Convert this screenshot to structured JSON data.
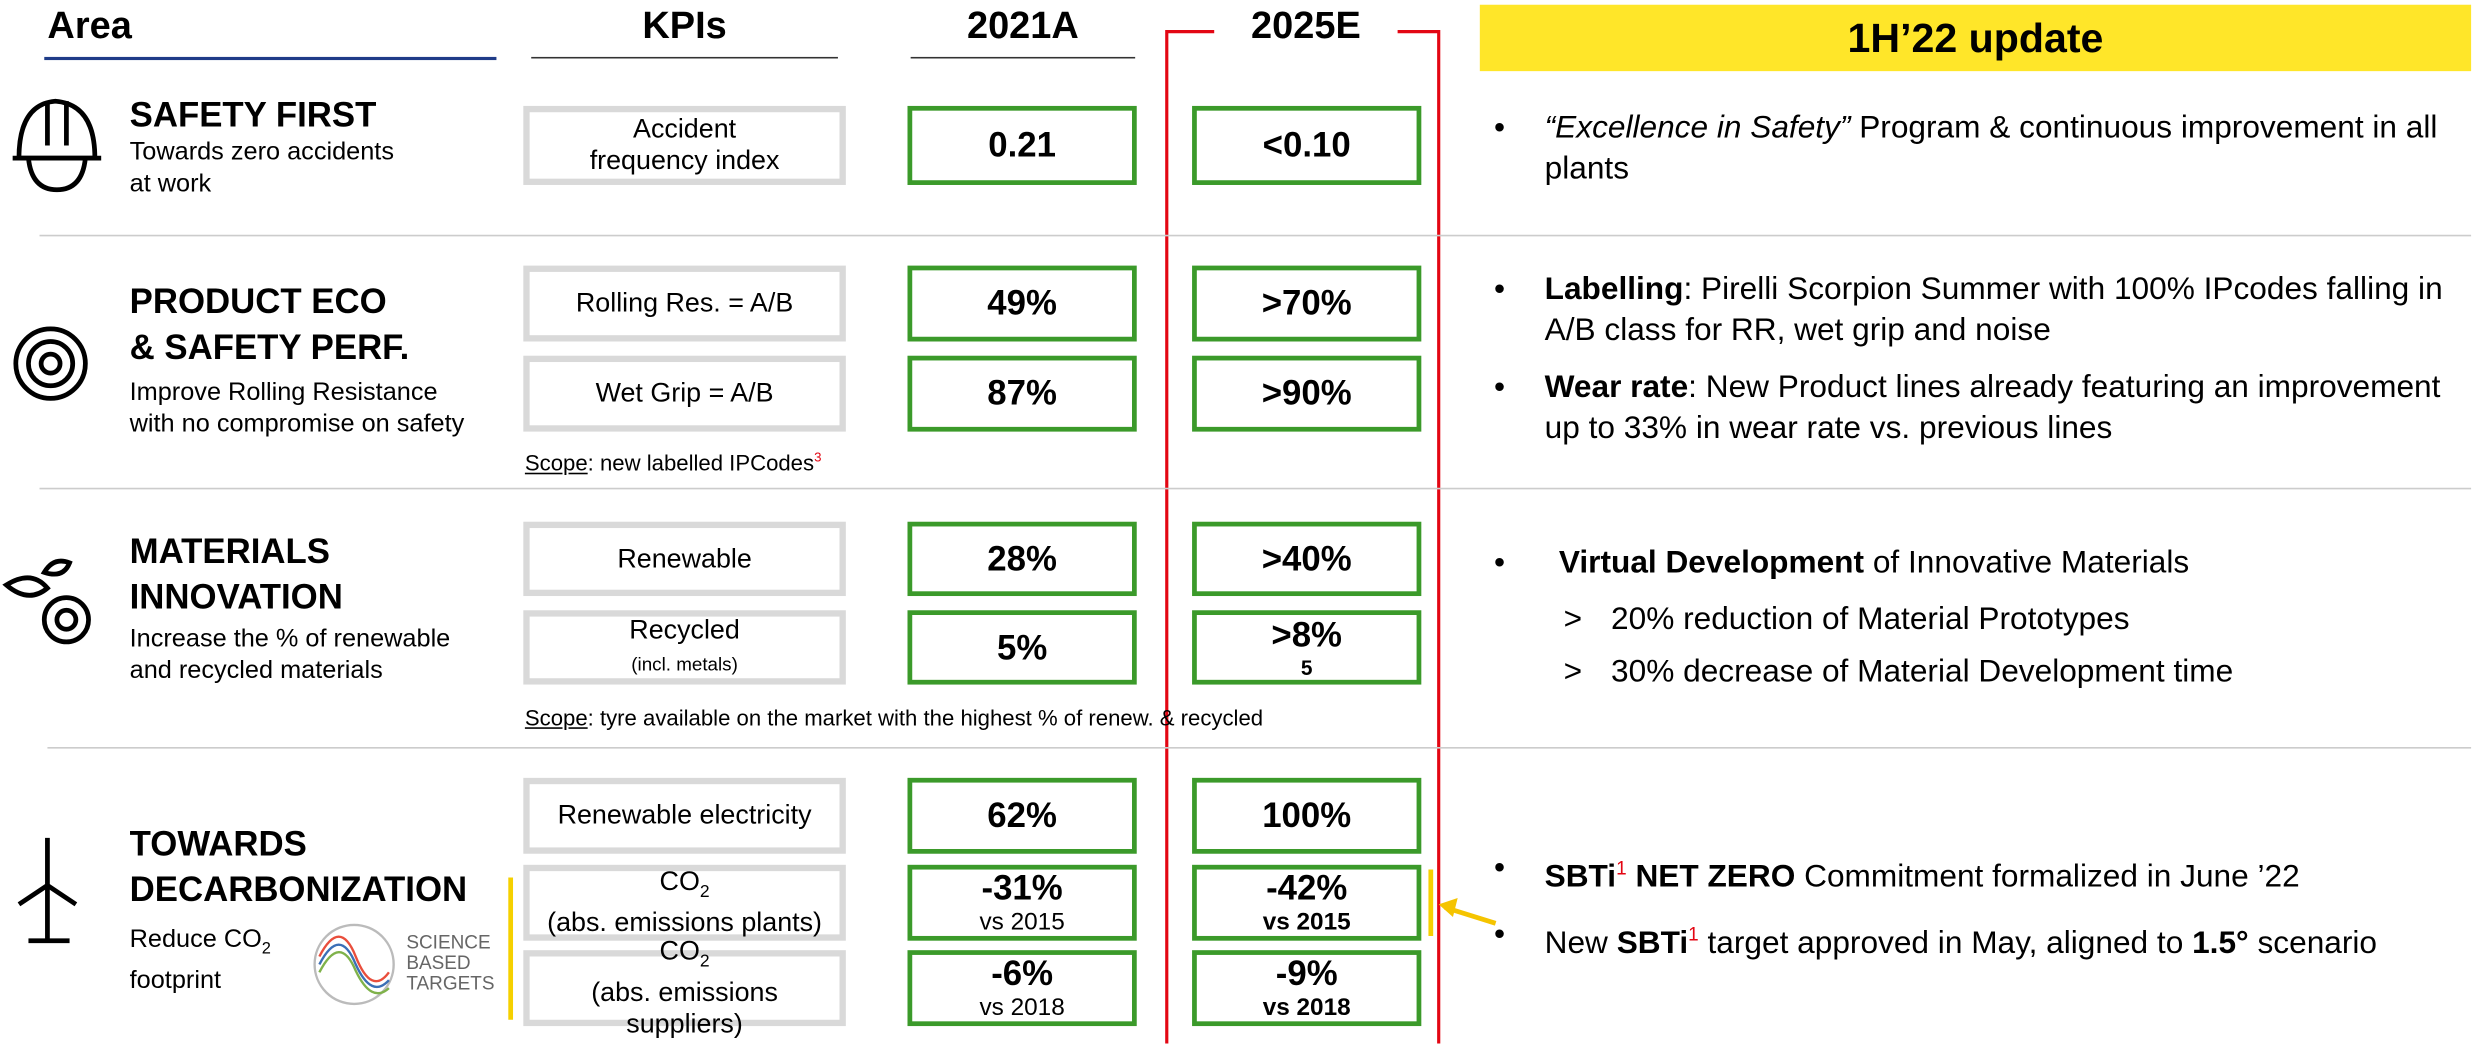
{
  "header": {
    "area": "Area",
    "kpis": "KPIs",
    "year_a": "2021A",
    "year_e": "2025E",
    "update": "1H’22 update"
  },
  "sections": [
    {
      "title": [
        "SAFETY FIRST"
      ],
      "subtitle": [
        [
          {
            "t": "Towards zero accidents"
          }
        ],
        [
          {
            "t": "at work"
          }
        ]
      ],
      "kpis": [
        {
          "label": [
            [
              {
                "t": "Accident"
              }
            ],
            [
              {
                "t": "frequency index"
              }
            ]
          ],
          "actual": [
            {
              "b": "0.21"
            }
          ],
          "target": [
            {
              "b": "<0.10"
            }
          ]
        }
      ],
      "updates": [
        {
          "marker": "•",
          "runs": [
            {
              "i": "“Excellence in Safety”"
            },
            {
              "t": " Program & continuous improvement in all plants"
            }
          ]
        }
      ]
    },
    {
      "title": [
        "PRODUCT ECO",
        "& SAFETY PERF."
      ],
      "subtitle": [
        [
          {
            "t": "Improve Rolling Resistance"
          }
        ],
        [
          {
            "t": "with no compromise on safety"
          }
        ]
      ],
      "kpis": [
        {
          "label": [
            [
              {
                "t": "Rolling Res. = A/B"
              }
            ]
          ],
          "actual": [
            {
              "b": "49%"
            }
          ],
          "target": [
            {
              "b": ">70%"
            }
          ]
        },
        {
          "label": [
            [
              {
                "t": "Wet Grip = A/B"
              }
            ]
          ],
          "actual": [
            {
              "b": "87%"
            }
          ],
          "target": [
            {
              "b": ">90%"
            }
          ]
        }
      ],
      "scope": [
        {
          "u": "Scope"
        },
        {
          "t": ": new labelled IPCodes"
        },
        {
          "sup": "3"
        }
      ],
      "updates": [
        {
          "marker": "•",
          "runs": [
            {
              "b": "Labelling"
            },
            {
              "t": ": Pirelli Scorpion Summer with 100% IPcodes falling in A/B class for RR, wet grip and noise"
            }
          ]
        },
        {
          "marker": "•",
          "runs": [
            {
              "b": "Wear rate"
            },
            {
              "t": ": New Product lines already featuring an improvement up to 33% in wear rate vs. previous lines"
            }
          ]
        }
      ]
    },
    {
      "title": [
        "MATERIALS",
        "INNOVATION"
      ],
      "subtitle": [
        [
          {
            "t": "Increase the % of renewable"
          }
        ],
        [
          {
            "t": "and recycled materials"
          }
        ]
      ],
      "kpis": [
        {
          "label": [
            [
              {
                "t": "Renewable"
              }
            ]
          ],
          "actual": [
            {
              "b": "28%"
            }
          ],
          "target": [
            {
              "b": ">40%"
            }
          ]
        },
        {
          "label": [
            [
              {
                "t": "Recycled"
              }
            ],
            [
              {
                "s": "(incl. metals)"
              }
            ]
          ],
          "actual": [
            {
              "b": "5%"
            }
          ],
          "target": [
            {
              "b": ">8%"
            },
            {
              "bsup": "5"
            }
          ]
        }
      ],
      "scope": [
        {
          "u": "Scope"
        },
        {
          "t": ": tyre available on the market with the highest % of renew. & recycled"
        }
      ],
      "updates": [
        {
          "marker": "•",
          "runs": [
            {
              "b": "Virtual Development"
            },
            {
              "t": " of Innovative Materials"
            }
          ]
        },
        {
          "marker": ">",
          "sub": true,
          "runs": [
            {
              "t": "20% reduction of Material Prototypes"
            }
          ]
        },
        {
          "marker": ">",
          "sub": true,
          "runs": [
            {
              "t": "30% decrease of Material Development time"
            }
          ]
        }
      ]
    },
    {
      "title": [
        "TOWARDS",
        "DECARBONIZATION"
      ],
      "subtitle": [
        [
          {
            "t": "Reduce CO"
          },
          {
            "sub": "2"
          }
        ],
        [
          {
            "t": "footprint"
          }
        ]
      ],
      "logo": [
        "SCIENCE",
        "BASED",
        "TARGETS"
      ],
      "kpis": [
        {
          "label": [
            [
              {
                "t": "Renewable electricity"
              }
            ]
          ],
          "actual": [
            {
              "b": "62%"
            }
          ],
          "target": [
            {
              "b": "100%"
            }
          ]
        },
        {
          "label": [
            [
              {
                "t": "CO"
              },
              {
                "sub": "2"
              }
            ],
            [
              {
                "t": "(abs. emissions plants)"
              }
            ]
          ],
          "actual": [
            {
              "b": "-31%"
            },
            {
              "s": " vs 2015"
            }
          ],
          "target": [
            {
              "b": "-42%"
            },
            {
              "bs": " vs 2015"
            }
          ]
        },
        {
          "label": [
            [
              {
                "t": "CO"
              },
              {
                "sub": "2"
              }
            ],
            [
              {
                "t": "(abs. emissions suppliers)"
              }
            ]
          ],
          "actual": [
            {
              "b": "-6%"
            },
            {
              "s": " vs 2018"
            }
          ],
          "target": [
            {
              "b": "-9%"
            },
            {
              "bs": " vs 2018"
            }
          ]
        }
      ],
      "updates": [
        {
          "marker": "•",
          "runs": [
            {
              "b": "SBTi"
            },
            {
              "sup": "1"
            },
            {
              "b": " NET ZERO"
            },
            {
              "t": " Commitment formalized in June ’22"
            }
          ]
        },
        {
          "marker": "•",
          "runs": [
            {
              "t": "New "
            },
            {
              "b": "SBTi"
            },
            {
              "sup": "1"
            },
            {
              "t": " target approved in May, aligned to "
            },
            {
              "b": "1.5°"
            },
            {
              "t": " scenario"
            }
          ]
        }
      ]
    }
  ]
}
